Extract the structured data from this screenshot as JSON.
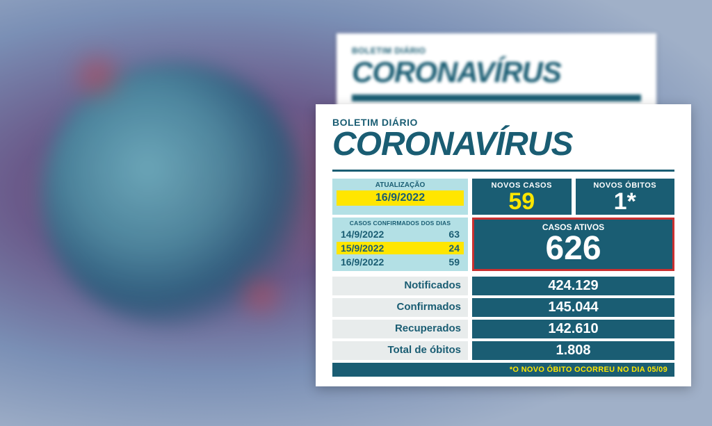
{
  "colors": {
    "teal": "#1a5d73",
    "cyan": "#b3e0e5",
    "pale": "#e8ecec",
    "yellow": "#ffe600",
    "highlight_border": "#c93030",
    "white": "#ffffff"
  },
  "header": {
    "subhead": "BOLETIM DIÁRIO",
    "title": "CORONAVÍRUS"
  },
  "update": {
    "label": "ATUALIZAÇÃO",
    "date": "16/9/2022"
  },
  "new_cases": {
    "label": "NOVOS CASOS",
    "value": "59"
  },
  "new_deaths": {
    "label": "NOVOS ÓBITOS",
    "value": "1*"
  },
  "confirmed_days": {
    "label": "CASOS CONFIRMADOS DOS DIAS",
    "rows": [
      {
        "date": "14/9/2022",
        "value": "63",
        "highlight": false
      },
      {
        "date": "15/9/2022",
        "value": "24",
        "highlight": true
      },
      {
        "date": "16/9/2022",
        "value": "59",
        "highlight": false
      }
    ]
  },
  "active_cases": {
    "label": "CASOS ATIVOS",
    "value": "626"
  },
  "totals": [
    {
      "label": "Notificados",
      "value": "424.129"
    },
    {
      "label": "Confirmados",
      "value": "145.044"
    },
    {
      "label": "Recuperados",
      "value": "142.610"
    },
    {
      "label": "Total de óbitos",
      "value": "1.808"
    }
  ],
  "footnote": "*O NOVO ÓBITO OCORREU NO DIA 05/09"
}
